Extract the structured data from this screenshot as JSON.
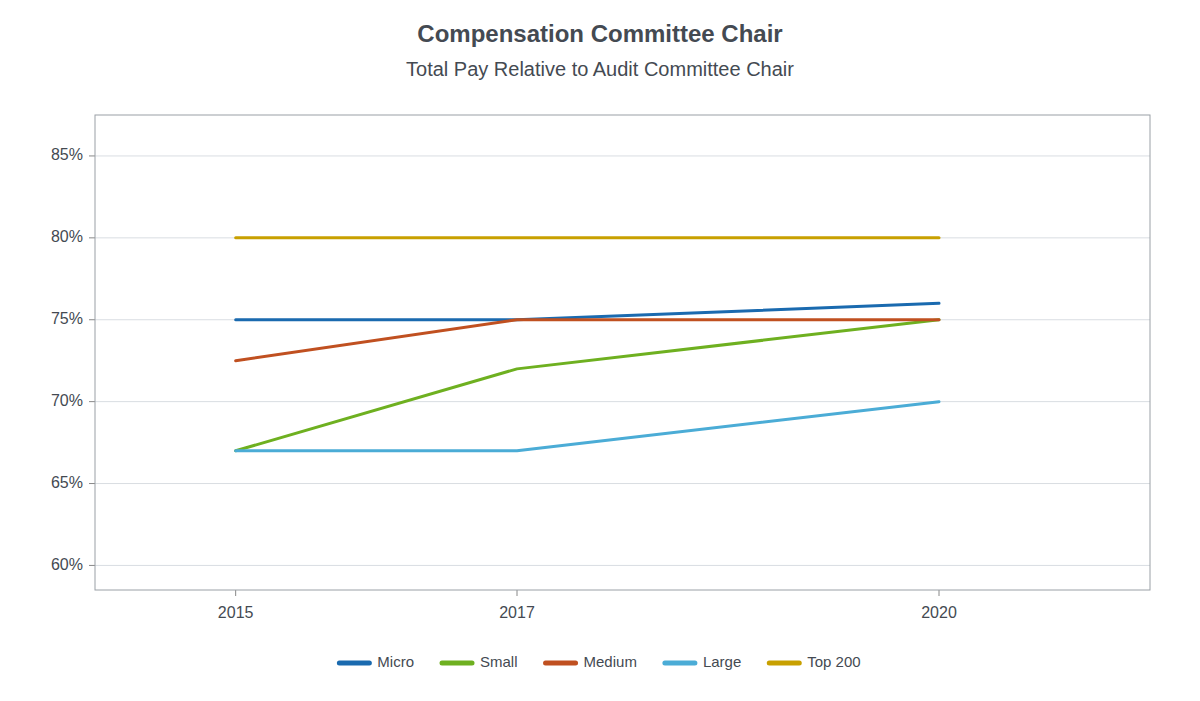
{
  "chart_data": {
    "type": "line",
    "title": "Compensation Committee Chair",
    "subtitle": "Total Pay Relative to Audit Committee Chair",
    "x": [
      2015,
      2017,
      2020
    ],
    "series": [
      {
        "name": "Micro",
        "color": "#1A6AAF",
        "values": [
          0.75,
          0.75,
          0.76
        ]
      },
      {
        "name": "Small",
        "color": "#6EB020",
        "values": [
          0.67,
          0.72,
          0.75
        ]
      },
      {
        "name": "Medium",
        "color": "#C05020",
        "values": [
          0.725,
          0.75,
          0.75
        ]
      },
      {
        "name": "Large",
        "color": "#4BACD6",
        "values": [
          0.67,
          0.67,
          0.7
        ]
      },
      {
        "name": "Top 200",
        "color": "#C8A000",
        "values": [
          0.8,
          0.8,
          0.8
        ]
      }
    ],
    "xlim": [
      2014.0,
      2021.5
    ],
    "xticks": [
      2015,
      2017,
      2020
    ],
    "ylim": [
      0.585,
      0.875
    ],
    "yticks": [
      {
        "value": 0.6,
        "label": "60%"
      },
      {
        "value": 0.65,
        "label": "65%"
      },
      {
        "value": 0.7,
        "label": "70%"
      },
      {
        "value": 0.75,
        "label": "75%"
      },
      {
        "value": 0.8,
        "label": "80%"
      },
      {
        "value": 0.85,
        "label": "85%"
      }
    ],
    "grid": true,
    "legend": "bottom"
  }
}
